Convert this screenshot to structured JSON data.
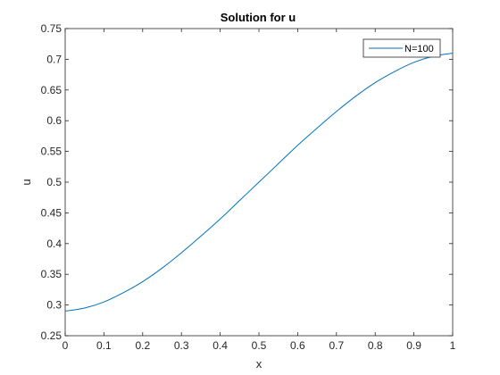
{
  "chart_data": {
    "type": "line",
    "title": "Solution for u",
    "xlabel": "x",
    "ylabel": "u",
    "xlim": [
      0,
      1
    ],
    "ylim": [
      0.25,
      0.75
    ],
    "xticks": [
      "0",
      "0.1",
      "0.2",
      "0.3",
      "0.4",
      "0.5",
      "0.6",
      "0.7",
      "0.8",
      "0.9",
      "1"
    ],
    "yticks": [
      "0.25",
      "0.3",
      "0.35",
      "0.4",
      "0.45",
      "0.5",
      "0.55",
      "0.6",
      "0.65",
      "0.7",
      "0.75"
    ],
    "grid": false,
    "legend_position": "top-right",
    "series": [
      {
        "name": "N=100",
        "color": "#0072BD",
        "x": [
          0,
          0.05,
          0.1,
          0.15,
          0.2,
          0.25,
          0.3,
          0.35,
          0.4,
          0.45,
          0.5,
          0.55,
          0.6,
          0.65,
          0.7,
          0.75,
          0.8,
          0.85,
          0.9,
          0.95,
          1
        ],
        "y": [
          0.29,
          0.295,
          0.305,
          0.32,
          0.338,
          0.36,
          0.385,
          0.412,
          0.44,
          0.47,
          0.5,
          0.53,
          0.56,
          0.588,
          0.615,
          0.64,
          0.662,
          0.68,
          0.695,
          0.705,
          0.71
        ]
      }
    ]
  }
}
